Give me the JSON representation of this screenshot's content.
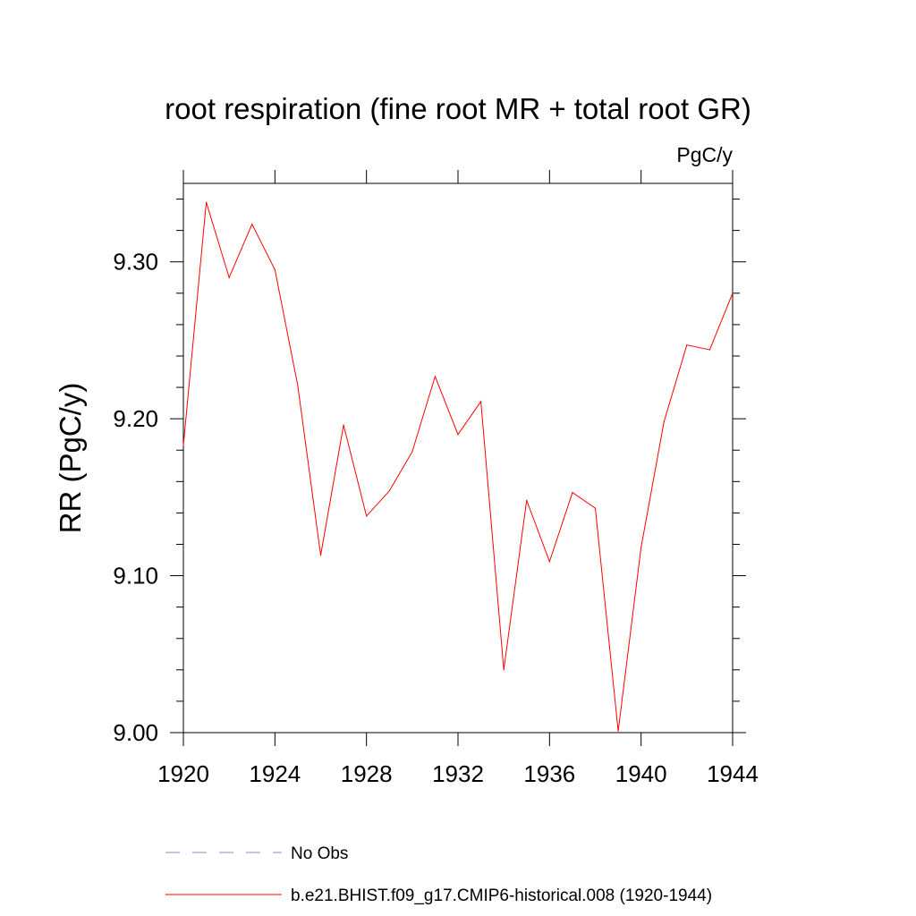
{
  "chart_data": {
    "type": "line",
    "title": "root respiration (fine root MR + total root GR)",
    "units_label": "PgC/y",
    "ylabel": "RR  (PgC/y)",
    "xlabel": "",
    "xlim": [
      1920,
      1944
    ],
    "ylim": [
      9.0,
      9.35
    ],
    "x_ticks": [
      1920,
      1924,
      1928,
      1932,
      1936,
      1940,
      1944
    ],
    "x_tick_labels": [
      "1920",
      "1924",
      "1928",
      "1932",
      "1936",
      "1940",
      "1944"
    ],
    "y_ticks": [
      9.0,
      9.1,
      9.2,
      9.3
    ],
    "y_tick_labels": [
      "9.00",
      "9.10",
      "9.20",
      "9.30"
    ],
    "y_minor_step": 0.02,
    "x_minor_step": 1,
    "series": [
      {
        "name": "b.e21.BHIST.f09_g17.CMIP6-historical.008 (1920-1944)",
        "color": "#ff0000",
        "style": "solid",
        "x": [
          1920,
          1921,
          1922,
          1923,
          1924,
          1925,
          1926,
          1927,
          1928,
          1929,
          1930,
          1931,
          1932,
          1933,
          1934,
          1935,
          1936,
          1937,
          1938,
          1939,
          1940,
          1941,
          1942,
          1943,
          1944
        ],
        "y": [
          9.183,
          9.338,
          9.29,
          9.324,
          9.295,
          9.221,
          9.113,
          9.196,
          9.138,
          9.154,
          9.179,
          9.227,
          9.19,
          9.211,
          9.04,
          9.148,
          9.109,
          9.153,
          9.143,
          9.001,
          9.118,
          9.198,
          9.247,
          9.244,
          9.28
        ]
      }
    ],
    "legend": [
      {
        "label": "No Obs",
        "color": "#8a8ac8",
        "style": "dashed"
      },
      {
        "label": "b.e21.BHIST.f09_g17.CMIP6-historical.008 (1920-1944)",
        "color": "#ff0000",
        "style": "solid"
      }
    ],
    "legend_position": "bottom",
    "grid": false
  }
}
